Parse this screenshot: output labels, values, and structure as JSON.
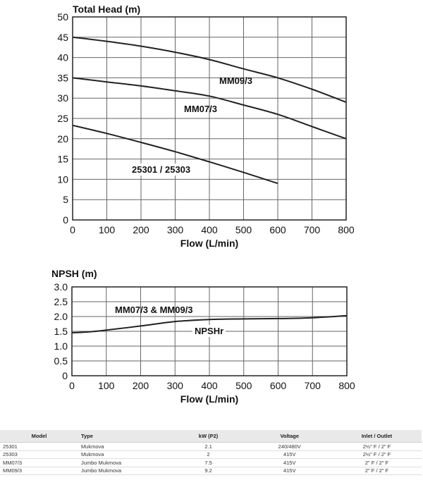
{
  "chart_data": [
    {
      "type": "line",
      "title": "Total Head (m)",
      "xlabel": "Flow (L/min)",
      "ylabel": "",
      "xlim": [
        0,
        800
      ],
      "ylim": [
        0,
        50
      ],
      "xticks": [
        0,
        100,
        200,
        300,
        400,
        500,
        600,
        700,
        800
      ],
      "yticks": [
        0,
        5,
        10,
        15,
        20,
        25,
        30,
        35,
        40,
        45,
        50
      ],
      "grid": true,
      "series": [
        {
          "name": "MM09/3",
          "x": [
            0,
            100,
            200,
            300,
            400,
            500,
            600,
            700,
            800
          ],
          "y": [
            45,
            44,
            42.8,
            41.3,
            39.5,
            37.2,
            35,
            32.2,
            29
          ]
        },
        {
          "name": "MM07/3",
          "x": [
            0,
            100,
            200,
            300,
            400,
            500,
            600,
            700,
            800
          ],
          "y": [
            35,
            34,
            33,
            31.8,
            30.5,
            28.3,
            26,
            23,
            20
          ]
        },
        {
          "name": "25301 / 25303",
          "x": [
            0,
            100,
            200,
            300,
            400,
            500,
            600
          ],
          "y": [
            23.3,
            21.3,
            19.1,
            16.8,
            14.3,
            11.7,
            9
          ]
        }
      ]
    },
    {
      "type": "line",
      "title": "NPSH (m)",
      "xlabel": "Flow (L/min)",
      "ylabel": "",
      "xlim": [
        0,
        800
      ],
      "ylim": [
        0,
        3.0
      ],
      "xticks": [
        0,
        100,
        200,
        300,
        400,
        500,
        600,
        700,
        800
      ],
      "yticks": [
        0,
        0.5,
        1.0,
        1.5,
        2.0,
        2.5,
        3.0
      ],
      "yticklabels": [
        "0",
        "0.5",
        "1.0",
        "1.5",
        "2.0",
        "2.5",
        "3.0"
      ],
      "grid": true,
      "annotations": [
        "MM07/3 & MM09/3",
        "NPSHr"
      ],
      "series": [
        {
          "name": "NPSHr",
          "x": [
            0,
            50,
            100,
            200,
            300,
            400,
            500,
            600,
            700,
            800
          ],
          "y": [
            1.45,
            1.48,
            1.54,
            1.68,
            1.83,
            1.9,
            1.92,
            1.93,
            1.96,
            2.03
          ]
        }
      ]
    }
  ],
  "table": {
    "headers": [
      "Model",
      "Type",
      "kW (P2)",
      "Voltage",
      "Inlet / Outlet"
    ],
    "rows": [
      [
        "25301",
        "Mukmova",
        "2.1",
        "240/480V",
        "2½\" F / 2\" F"
      ],
      [
        "25303",
        "Mukmova",
        "2",
        "415V",
        "2½\" F / 2\" F"
      ],
      [
        "MM07/3",
        "Jumbo Mukmova",
        "7.5",
        "415V",
        "2\" F / 2\" F"
      ],
      [
        "MM09/3",
        "Jumbo Mukmova",
        "9.2",
        "415V",
        "2\" F / 2\" F"
      ]
    ]
  }
}
